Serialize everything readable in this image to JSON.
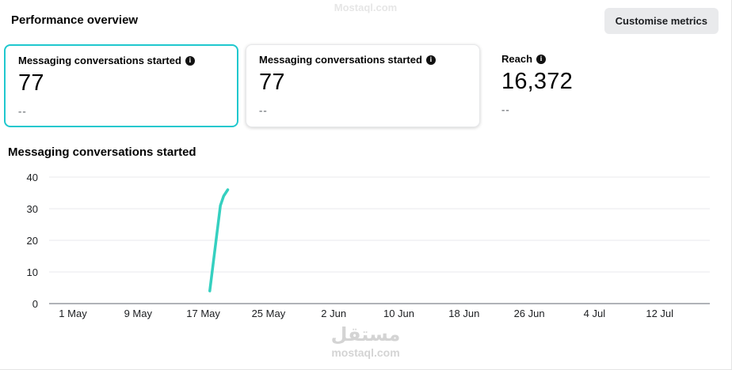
{
  "header": {
    "title": "Performance overview",
    "customise_button": "Customise metrics"
  },
  "cards": [
    {
      "label": "Messaging conversations started",
      "value": "77",
      "delta": "--",
      "selected": true,
      "plain": false
    },
    {
      "label": "Messaging conversations started",
      "value": "77",
      "delta": "--",
      "selected": false,
      "plain": false
    },
    {
      "label": "Reach",
      "value": "16,372",
      "delta": "--",
      "selected": false,
      "plain": true
    }
  ],
  "chart_section": {
    "title": "Messaging conversations started"
  },
  "chart_data": {
    "type": "line",
    "title": "Messaging conversations started",
    "x_ticks": [
      "1 May",
      "9 May",
      "17 May",
      "25 May",
      "2 Jun",
      "10 Jun",
      "18 Jun",
      "26 Jun",
      "4 Jul",
      "12 Jul"
    ],
    "x_tick_interval_days": 8,
    "y_ticks": [
      0,
      10,
      20,
      30,
      40
    ],
    "ylim": [
      0,
      40
    ],
    "grid": "horizontal",
    "legend": "none",
    "line_color": "#35d0c0",
    "series": [
      {
        "name": "Messaging conversations started",
        "points": [
          {
            "day": 17.8,
            "value": 4
          },
          {
            "day": 19.1,
            "value": 31
          },
          {
            "day": 19.5,
            "value": 34
          },
          {
            "day": 20.0,
            "value": 36
          }
        ],
        "note": "day = days since 1 May (1 May = 1); conversations spike around 18-20 May, flat/absent elsewhere"
      }
    ]
  },
  "colors": {
    "selected_card_border": "#1fc8ce",
    "chart_line": "#35d0c0",
    "gridline": "#e9eaed",
    "axis_line": "#606770",
    "muted_text": "#8a8d91"
  },
  "watermarks": {
    "top": "Mostaql.com",
    "bottom_ar": "مستقل",
    "bottom_en": "mostaql.com"
  }
}
